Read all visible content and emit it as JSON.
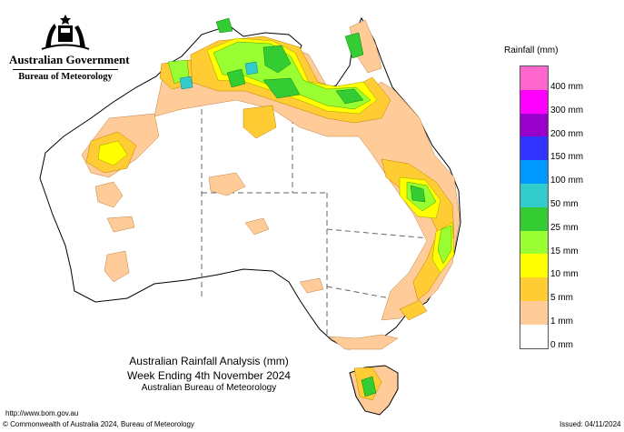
{
  "header": {
    "government": "Australian Government",
    "bureau": "Bureau of Meteorology"
  },
  "title": {
    "line1": "Australian Rainfall Analysis (mm)",
    "line2": "Week Ending 4th November 2024",
    "line3": "Australian Bureau of Meteorology"
  },
  "legend": {
    "title": "Rainfall (mm)",
    "items": [
      {
        "label": "400 mm",
        "color": "#ff66cc"
      },
      {
        "label": "300 mm",
        "color": "#ff00ff"
      },
      {
        "label": "200 mm",
        "color": "#9900cc"
      },
      {
        "label": "150 mm",
        "color": "#3333ff"
      },
      {
        "label": "100 mm",
        "color": "#0099ff"
      },
      {
        "label": "50 mm",
        "color": "#33cccc"
      },
      {
        "label": "25 mm",
        "color": "#33cc33"
      },
      {
        "label": "15 mm",
        "color": "#99ff33"
      },
      {
        "label": "10 mm",
        "color": "#ffff00"
      },
      {
        "label": "5 mm",
        "color": "#ffcc33"
      },
      {
        "label": "1 mm",
        "color": "#ffcc99"
      },
      {
        "label": "0 mm",
        "color": "#ffffff"
      }
    ]
  },
  "footer": {
    "url": "http://www.bom.gov.au",
    "copyright": "© Commonwealth of Australia 2024, Bureau of Meteorology",
    "issued": "Issued: 04/11/2024"
  }
}
